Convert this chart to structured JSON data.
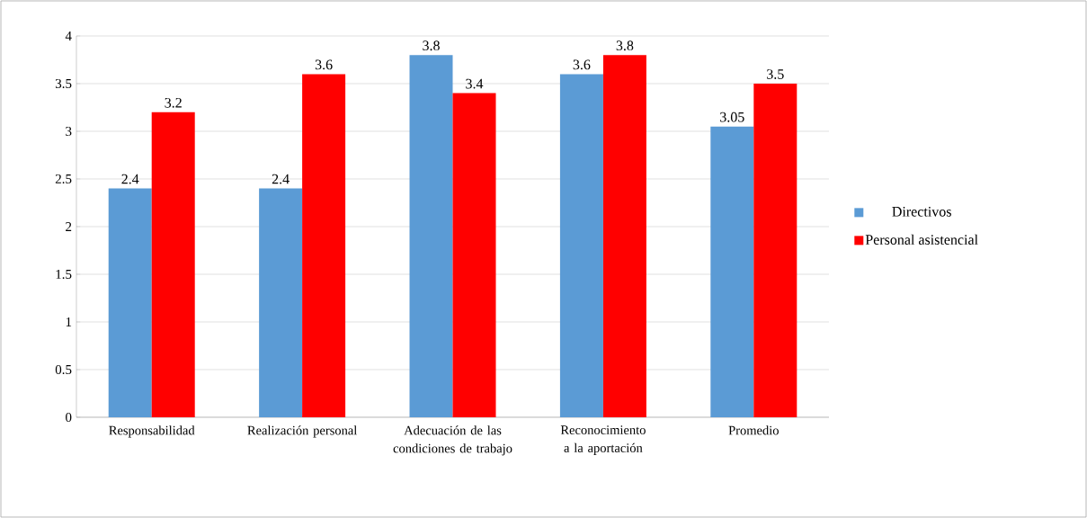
{
  "chart_data": {
    "type": "bar",
    "categories": [
      "Responsabilidad",
      "Realización personal",
      "Adecuación de las condiciones de trabajo",
      "Reconocimiento a la aportación",
      "Promedio"
    ],
    "series": [
      {
        "name": "Directivos",
        "color": "#5b9bd5",
        "values": [
          2.4,
          2.4,
          3.8,
          3.6,
          3.05
        ]
      },
      {
        "name": "Personal asistencial",
        "color": "#ff0000",
        "values": [
          3.2,
          3.6,
          3.4,
          3.8,
          3.5
        ]
      }
    ],
    "ylim": [
      0,
      4
    ],
    "yticks": [
      0,
      0.5,
      1,
      1.5,
      2,
      2.5,
      3,
      3.5,
      4
    ],
    "grid": "y",
    "legend": "right",
    "data_labels": true
  }
}
